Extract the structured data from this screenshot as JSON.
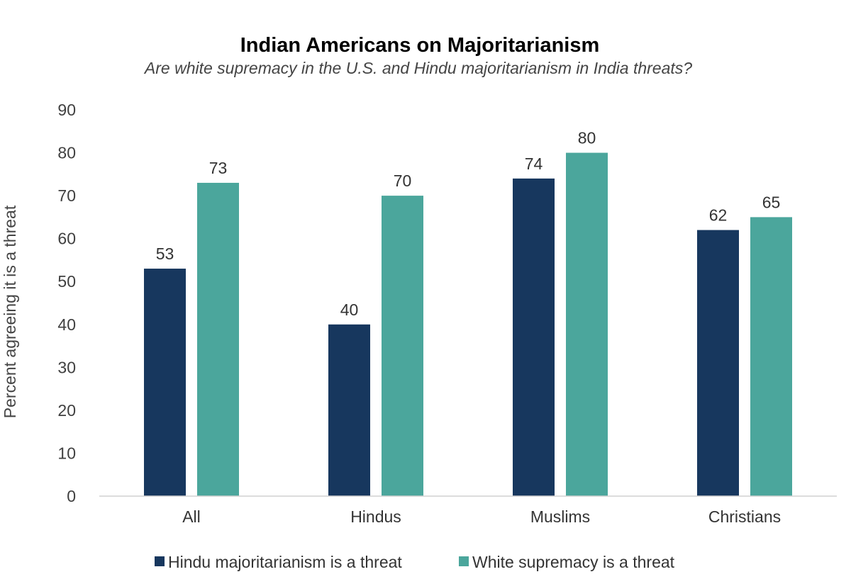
{
  "chart_data": {
    "type": "bar",
    "title": "Indian Americans on Majoritarianism",
    "subtitle": "Are white supremacy in the U.S. and Hindu majoritarianism in India threats?",
    "xlabel": "",
    "ylabel": "Percent agreeing it is a threat",
    "ylim": [
      0,
      90
    ],
    "yticks": [
      0,
      10,
      20,
      30,
      40,
      50,
      60,
      70,
      80,
      90
    ],
    "grid": false,
    "legend_position": "bottom",
    "categories": [
      "All",
      "Hindus",
      "Muslims",
      "Christians"
    ],
    "series": [
      {
        "name": "Hindu majoritarianism is a threat",
        "values": [
          53,
          40,
          74,
          62
        ],
        "color": "#17375e"
      },
      {
        "name": "White supremacy is a threat",
        "values": [
          73,
          70,
          80,
          65
        ],
        "color": "#4ba69c"
      }
    ]
  }
}
